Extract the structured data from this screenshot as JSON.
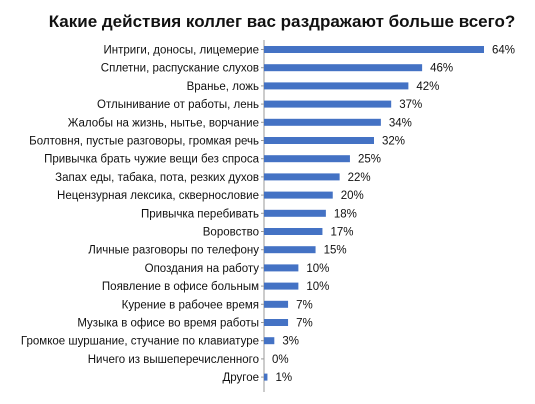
{
  "chart_data": {
    "type": "bar",
    "orientation": "horizontal",
    "title": "Какие действия коллег вас раздражают больше всего?",
    "xlabel": "",
    "ylabel": "",
    "xlim": [
      0,
      64
    ],
    "grid": false,
    "legend": "none",
    "bar_color": "#4472C4",
    "categories": [
      "Интриги, доносы, лицемерие",
      "Сплетни, распускание слухов",
      "Вранье, ложь",
      "Отлынивание от работы, лень",
      "Жалобы на жизнь, нытье, ворчание",
      "Болтовня, пустые разговоры, громкая речь",
      "Привычка брать чужие вещи без спроса",
      "Запах еды, табака, пота, резких духов",
      "Нецензурная лексика, сквернословие",
      "Привычка перебивать",
      "Воровство",
      "Личные разговоры по телефону",
      "Опоздания на работу",
      "Появление в офисе больным",
      "Курение в рабочее время",
      "Музыка в офисе во время работы",
      "Громкое шуршание, стучание по клавиатуре",
      "Ничего из вышеперечисленного",
      "Другое"
    ],
    "values": [
      64,
      46,
      42,
      37,
      34,
      32,
      25,
      22,
      20,
      18,
      17,
      15,
      10,
      10,
      7,
      7,
      3,
      0,
      1
    ],
    "value_labels": [
      "64%",
      "46%",
      "42%",
      "37%",
      "34%",
      "32%",
      "25%",
      "22%",
      "20%",
      "18%",
      "17%",
      "15%",
      "10%",
      "10%",
      "7%",
      "7%",
      "3%",
      "0%",
      "1%"
    ]
  }
}
